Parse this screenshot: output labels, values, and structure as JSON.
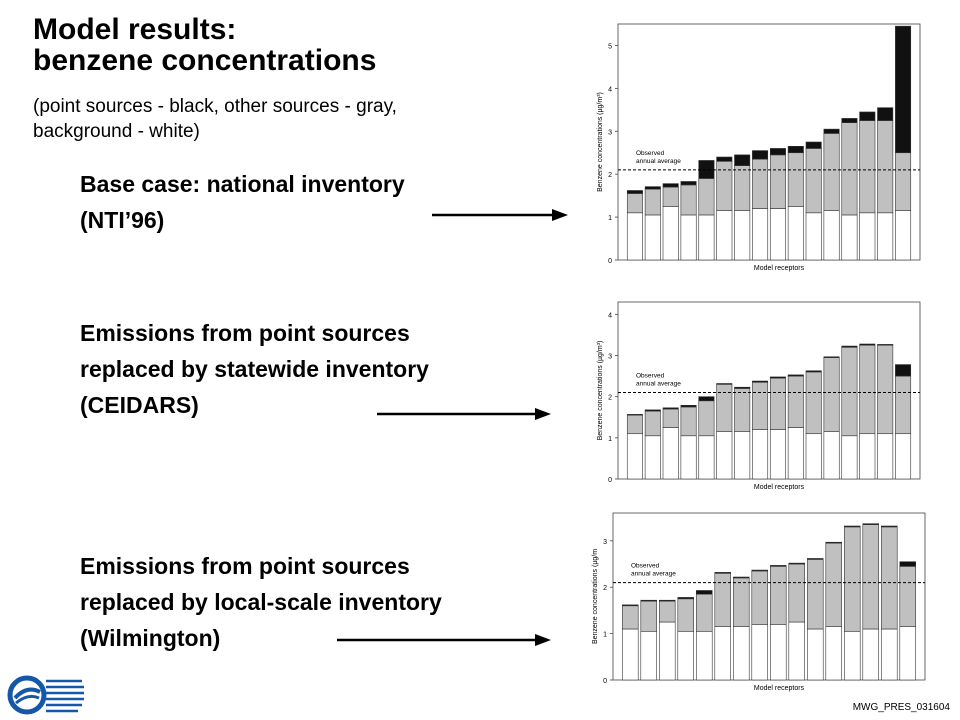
{
  "title": {
    "line1": "Model results:",
    "line2": "benzene concentrations"
  },
  "subtitle": {
    "line1": "(point sources - black,  other sources - gray,",
    "line2": "background - white)"
  },
  "cases": [
    {
      "lines": [
        "Base case: national inventory",
        "(NTI’96)"
      ]
    },
    {
      "lines": [
        "Emissions from point sources",
        "replaced by statewide inventory",
        "(CEIDARS)"
      ]
    },
    {
      "lines": [
        "Emissions from point sources",
        "replaced by local-scale inventory",
        "(Wilmington)"
      ]
    }
  ],
  "footer": {
    "code": "MWG_PRES_031604"
  },
  "colors": {
    "point": "#111111",
    "other": "#c0c0c0",
    "background": "#ffffff",
    "outline": "#333333"
  },
  "chart_data": [
    {
      "type": "bar",
      "stacked": true,
      "xlabel": "Model receptors",
      "ylabel": "Benzene concentrations (µg/m³)",
      "ylim": [
        0,
        5.5
      ],
      "yticks": [
        0,
        1,
        2,
        3,
        4,
        5
      ],
      "observed": {
        "value": 2.1,
        "label_line1": "Observed",
        "label_line2": "annual average"
      },
      "series": [
        {
          "name": "background",
          "values": [
            1.1,
            1.05,
            1.25,
            1.05,
            1.05,
            1.15,
            1.15,
            1.2,
            1.2,
            1.25,
            1.1,
            1.15,
            1.05,
            1.1,
            1.1,
            1.15
          ]
        },
        {
          "name": "other sources",
          "values": [
            0.45,
            0.6,
            0.45,
            0.7,
            0.85,
            1.15,
            1.05,
            1.15,
            1.25,
            1.25,
            1.5,
            1.8,
            2.15,
            2.15,
            2.15,
            1.35
          ]
        },
        {
          "name": "point sources",
          "values": [
            0.07,
            0.06,
            0.08,
            0.08,
            0.42,
            0.1,
            0.25,
            0.2,
            0.15,
            0.15,
            0.15,
            0.1,
            0.1,
            0.2,
            0.3,
            2.95
          ]
        }
      ]
    },
    {
      "type": "bar",
      "stacked": true,
      "xlabel": "Model receptors",
      "ylabel": "Benzene concentrations (µg/m³)",
      "ylim": [
        0,
        4.3
      ],
      "yticks": [
        0,
        1,
        2,
        3,
        4
      ],
      "observed": {
        "value": 2.1,
        "label_line1": "Observed",
        "label_line2": "annual average"
      },
      "series": [
        {
          "name": "background",
          "values": [
            1.1,
            1.05,
            1.25,
            1.05,
            1.05,
            1.15,
            1.15,
            1.2,
            1.2,
            1.25,
            1.1,
            1.15,
            1.05,
            1.1,
            1.1,
            1.1
          ]
        },
        {
          "name": "other sources",
          "values": [
            0.45,
            0.6,
            0.45,
            0.7,
            0.85,
            1.15,
            1.05,
            1.15,
            1.25,
            1.25,
            1.5,
            1.8,
            2.15,
            2.15,
            2.15,
            1.4
          ]
        },
        {
          "name": "point sources",
          "values": [
            0.02,
            0.03,
            0.03,
            0.04,
            0.1,
            0.02,
            0.03,
            0.03,
            0.03,
            0.03,
            0.03,
            0.02,
            0.03,
            0.03,
            0.02,
            0.28
          ]
        }
      ]
    },
    {
      "type": "bar",
      "stacked": true,
      "xlabel": "Model receptors",
      "ylabel": "Benzene concentrations (µg/m",
      "ylim": [
        0,
        3.6
      ],
      "yticks": [
        0,
        1,
        2,
        3
      ],
      "observed": {
        "value": 2.1,
        "label_line1": "Observed",
        "label_line2": "annual average"
      },
      "series": [
        {
          "name": "background",
          "values": [
            1.1,
            1.05,
            1.25,
            1.05,
            1.05,
            1.15,
            1.15,
            1.2,
            1.2,
            1.25,
            1.1,
            1.15,
            1.05,
            1.1,
            1.1,
            1.15
          ]
        },
        {
          "name": "other sources",
          "values": [
            0.5,
            0.65,
            0.45,
            0.7,
            0.8,
            1.15,
            1.05,
            1.15,
            1.25,
            1.25,
            1.5,
            1.8,
            2.25,
            2.25,
            2.2,
            1.3
          ]
        },
        {
          "name": "point sources",
          "values": [
            0.02,
            0.02,
            0.02,
            0.03,
            0.08,
            0.02,
            0.02,
            0.02,
            0.02,
            0.02,
            0.02,
            0.02,
            0.02,
            0.02,
            0.02,
            0.1
          ]
        }
      ]
    }
  ]
}
